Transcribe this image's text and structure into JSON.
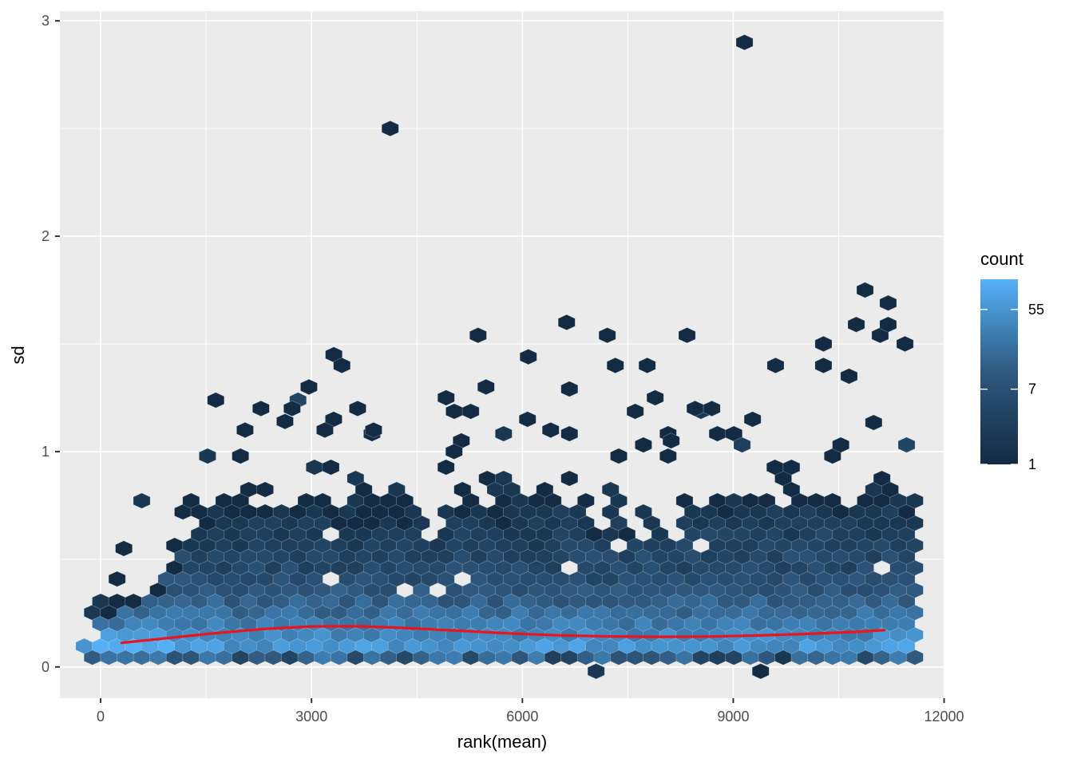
{
  "chart_data": {
    "type": "hexbin",
    "title": "",
    "xlabel": "rank(mean)",
    "ylabel": "sd",
    "x_ticks": [
      0,
      3000,
      6000,
      9000,
      12000
    ],
    "x_minor_ticks": [
      1500,
      4500,
      7500,
      10500
    ],
    "y_ticks": [
      0,
      1,
      2,
      3
    ],
    "y_minor_ticks": [
      0.5,
      1.5,
      2.5
    ],
    "xlim": [
      -580,
      12005
    ],
    "ylim": [
      -0.145,
      3.045
    ],
    "grid": "on",
    "legend": {
      "position": "right",
      "title": "count",
      "breaks": [
        55,
        7,
        1
      ],
      "min_count": 1,
      "scale_max_count": 120,
      "scale": "log",
      "low_color": "#132B43",
      "high_color": "#56B1F7",
      "gradient_stops": [
        [
          0,
          "#132B43"
        ],
        [
          0.25,
          "#20415F"
        ],
        [
          0.5,
          "#30597F"
        ],
        [
          0.75,
          "#4085BB"
        ],
        [
          1,
          "#56B1F7"
        ]
      ]
    },
    "colors": {
      "figure_background": "#FFFFFF",
      "panel_background": "#EBEBEB",
      "grid": "#FFFFFF",
      "axis_text": "#4D4D4D",
      "axis_title": "#000000",
      "tick_mark": "#333333",
      "hex_stroke": "rgba(235,240,245,0.35)",
      "legend_tick": "#FFFFFF"
    },
    "hex_geometry": {
      "x_binwidth": 234,
      "row_spacing_sd": 0.0519,
      "first_row_sd": 0.045,
      "columns": 51
    },
    "density_model": {
      "description": "Counts approximated from image: bright band (counts 30-120) at sd 0.05-0.2, decaying to count 1 near envelope; envelope rises from sd~0.15 at rank 0 to sd~0.75 by rank 2500 then plateaus; sparse count-1 hexes scattered to sd~1.3, denser toward high rank.",
      "seed": 11,
      "base_counts_by_row": [
        13,
        55,
        38,
        27,
        19,
        13,
        9,
        6.5,
        5,
        3.8,
        3,
        2.4,
        1.9,
        1.5
      ],
      "envelope": {
        "base_rows": 2,
        "rows_per_col": 1.5,
        "max_rows": 13,
        "jitter": 2.2,
        "bay_chance": 0.07,
        "tall_chance": 0.25
      },
      "bottom_row": {
        "dark_fraction": 0.3,
        "dark_counts": [
          2,
          5
        ],
        "light_counts": [
          8,
          30
        ]
      },
      "fringe_presence": [
        0.55,
        0.3,
        0.18,
        0.08
      ],
      "band": {
        "sd_range": [
          0.78,
          1.3
        ],
        "p_min": 0.015,
        "p_max": 0.1,
        "upper_damp": 0.55,
        "right_cluster_boost": 2.5
      },
      "hole_chance": 0.035
    },
    "outlier_hexes": [
      [
        4120,
        2.5,
        1
      ],
      [
        9160,
        2.9,
        1
      ],
      [
        330,
        0.55,
        1
      ],
      [
        2281,
        1.2,
        1
      ],
      [
        2724,
        1.2,
        1
      ],
      [
        2055,
        1.1,
        1
      ],
      [
        2623,
        1.14,
        1
      ],
      [
        3315,
        1.15,
        1
      ],
      [
        3656,
        1.2,
        1
      ],
      [
        3883,
        1.1,
        1
      ],
      [
        3190,
        1.1,
        1
      ],
      [
        2963,
        1.3,
        1
      ],
      [
        3318,
        1.45,
        1
      ],
      [
        3432,
        1.4,
        1
      ],
      [
        4915,
        1.25,
        1
      ],
      [
        5483,
        1.3,
        1
      ],
      [
        5131,
        1.05,
        1
      ],
      [
        5028,
        1.0,
        1
      ],
      [
        6073,
        1.15,
        1
      ],
      [
        6402,
        1.1,
        1
      ],
      [
        5370,
        1.54,
        1
      ],
      [
        6085,
        1.44,
        1
      ],
      [
        6630,
        1.6,
        1
      ],
      [
        7208,
        1.54,
        1
      ],
      [
        7322,
        1.4,
        1
      ],
      [
        7776,
        1.4,
        1
      ],
      [
        8343,
        1.54,
        1
      ],
      [
        7889,
        1.25,
        1
      ],
      [
        8457,
        1.2,
        1
      ],
      [
        8696,
        1.2,
        1
      ],
      [
        9275,
        1.15,
        1
      ],
      [
        8116,
        1.05,
        1
      ],
      [
        9602,
        1.4,
        1
      ],
      [
        10284,
        1.5,
        1
      ],
      [
        10284,
        1.4,
        1
      ],
      [
        10647,
        1.35,
        1
      ],
      [
        10750,
        1.59,
        1
      ],
      [
        10875,
        1.75,
        1
      ],
      [
        11090,
        1.54,
        1
      ],
      [
        11204,
        1.69,
        1
      ],
      [
        11204,
        1.59,
        1
      ],
      [
        11443,
        1.5,
        1
      ],
      [
        7049,
        -0.02,
        2
      ],
      [
        9390,
        -0.02,
        1
      ]
    ],
    "smooth_line": {
      "color": "#E9141D",
      "width": 3.2,
      "points": [
        [
          300,
          0.112
        ],
        [
          900,
          0.132
        ],
        [
          1600,
          0.156
        ],
        [
          2300,
          0.176
        ],
        [
          3000,
          0.188
        ],
        [
          3700,
          0.189
        ],
        [
          4400,
          0.18
        ],
        [
          5100,
          0.168
        ],
        [
          5800,
          0.156
        ],
        [
          6500,
          0.147
        ],
        [
          7200,
          0.142
        ],
        [
          7900,
          0.14
        ],
        [
          8600,
          0.141
        ],
        [
          9300,
          0.146
        ],
        [
          10000,
          0.153
        ],
        [
          10700,
          0.162
        ],
        [
          11150,
          0.171
        ]
      ]
    }
  }
}
